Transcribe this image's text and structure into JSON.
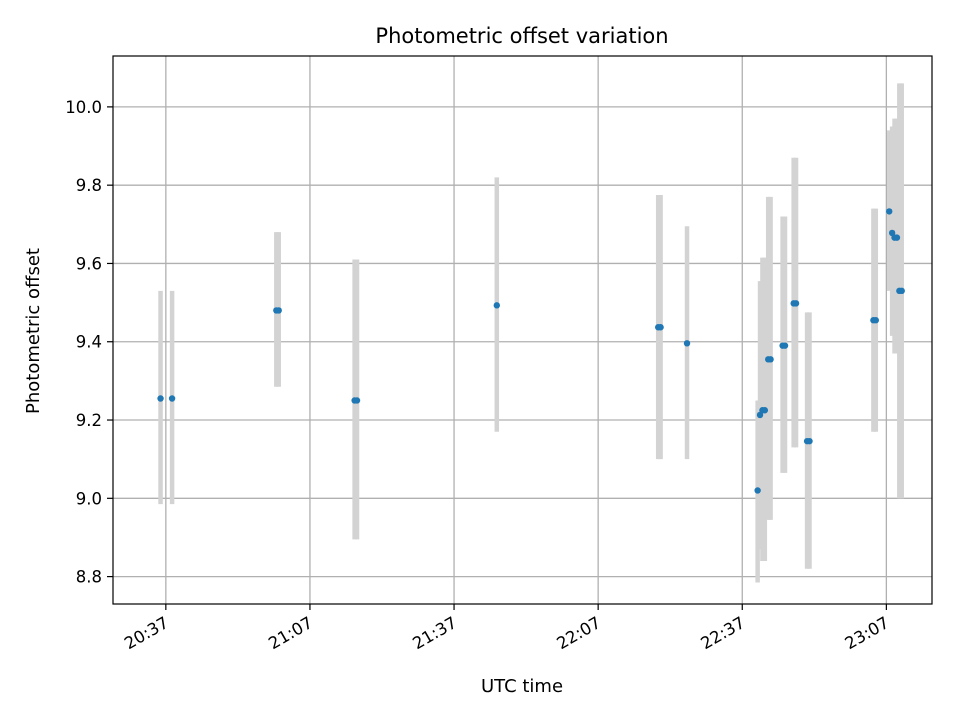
{
  "chart_data": {
    "type": "scatter",
    "title": "Photometric offset variation",
    "xlabel": "UTC time",
    "ylabel": "Photometric offset",
    "grid": true,
    "xlim_minutes": [
      1226.0,
      1396.5
    ],
    "ylim": [
      8.73,
      10.13
    ],
    "x_unit": "minutes since 00:00 UTC",
    "x_ticks": [
      {
        "minutes": 1237,
        "label": "20:37"
      },
      {
        "minutes": 1267,
        "label": "21:07"
      },
      {
        "minutes": 1297,
        "label": "21:37"
      },
      {
        "minutes": 1327,
        "label": "22:07"
      },
      {
        "minutes": 1357,
        "label": "22:37"
      },
      {
        "minutes": 1387,
        "label": "23:07"
      }
    ],
    "y_ticks": [
      {
        "value": 8.8,
        "label": "8.8"
      },
      {
        "value": 9.0,
        "label": "9.0"
      },
      {
        "value": 9.2,
        "label": "9.2"
      },
      {
        "value": 9.4,
        "label": "9.4"
      },
      {
        "value": 9.6,
        "label": "9.6"
      },
      {
        "value": 9.8,
        "label": "9.8"
      },
      {
        "value": 10.0,
        "label": "10.0"
      }
    ],
    "marker_color": "#1f77b4",
    "errorbar_color": "#d3d3d3",
    "points": [
      {
        "t": 1235.9,
        "y": 9.255,
        "ylow": 8.985,
        "yhigh": 9.53
      },
      {
        "t": 1238.3,
        "y": 9.255,
        "ylow": 8.985,
        "yhigh": 9.53
      },
      {
        "t": 1260.0,
        "y": 9.48,
        "ylow": 9.285,
        "yhigh": 9.68
      },
      {
        "t": 1260.5,
        "y": 9.48,
        "ylow": 9.285,
        "yhigh": 9.68
      },
      {
        "t": 1276.3,
        "y": 9.25,
        "ylow": 8.895,
        "yhigh": 9.61
      },
      {
        "t": 1276.8,
        "y": 9.25,
        "ylow": 8.895,
        "yhigh": 9.61
      },
      {
        "t": 1305.9,
        "y": 9.493,
        "ylow": 9.17,
        "yhigh": 9.82
      },
      {
        "t": 1339.5,
        "y": 9.437,
        "ylow": 9.1,
        "yhigh": 9.775
      },
      {
        "t": 1340.0,
        "y": 9.437,
        "ylow": 9.1,
        "yhigh": 9.775
      },
      {
        "t": 1345.5,
        "y": 9.396,
        "ylow": 9.1,
        "yhigh": 9.695
      },
      {
        "t": 1360.2,
        "y": 9.02,
        "ylow": 8.785,
        "yhigh": 9.25
      },
      {
        "t": 1360.7,
        "y": 9.213,
        "ylow": 8.87,
        "yhigh": 9.555
      },
      {
        "t": 1361.2,
        "y": 9.225,
        "ylow": 8.84,
        "yhigh": 9.615
      },
      {
        "t": 1361.7,
        "y": 9.225,
        "ylow": 8.84,
        "yhigh": 9.615
      },
      {
        "t": 1362.4,
        "y": 9.355,
        "ylow": 8.945,
        "yhigh": 9.77
      },
      {
        "t": 1362.9,
        "y": 9.355,
        "ylow": 8.945,
        "yhigh": 9.77
      },
      {
        "t": 1365.4,
        "y": 9.39,
        "ylow": 9.065,
        "yhigh": 9.72
      },
      {
        "t": 1365.9,
        "y": 9.39,
        "ylow": 9.065,
        "yhigh": 9.72
      },
      {
        "t": 1367.7,
        "y": 9.498,
        "ylow": 9.13,
        "yhigh": 9.87
      },
      {
        "t": 1368.2,
        "y": 9.498,
        "ylow": 9.13,
        "yhigh": 9.87
      },
      {
        "t": 1370.5,
        "y": 9.146,
        "ylow": 8.82,
        "yhigh": 9.475
      },
      {
        "t": 1371.0,
        "y": 9.146,
        "ylow": 8.82,
        "yhigh": 9.475
      },
      {
        "t": 1384.3,
        "y": 9.455,
        "ylow": 9.17,
        "yhigh": 9.74
      },
      {
        "t": 1384.8,
        "y": 9.455,
        "ylow": 9.17,
        "yhigh": 9.74
      },
      {
        "t": 1387.6,
        "y": 9.733,
        "ylow": 9.53,
        "yhigh": 9.94
      },
      {
        "t": 1388.2,
        "y": 9.678,
        "ylow": 9.415,
        "yhigh": 9.95
      },
      {
        "t": 1388.7,
        "y": 9.666,
        "ylow": 9.37,
        "yhigh": 9.97
      },
      {
        "t": 1389.2,
        "y": 9.666,
        "ylow": 9.37,
        "yhigh": 9.97
      },
      {
        "t": 1389.7,
        "y": 9.53,
        "ylow": 9.0,
        "yhigh": 10.06
      },
      {
        "t": 1390.2,
        "y": 9.53,
        "ylow": 9.0,
        "yhigh": 10.06
      }
    ]
  }
}
